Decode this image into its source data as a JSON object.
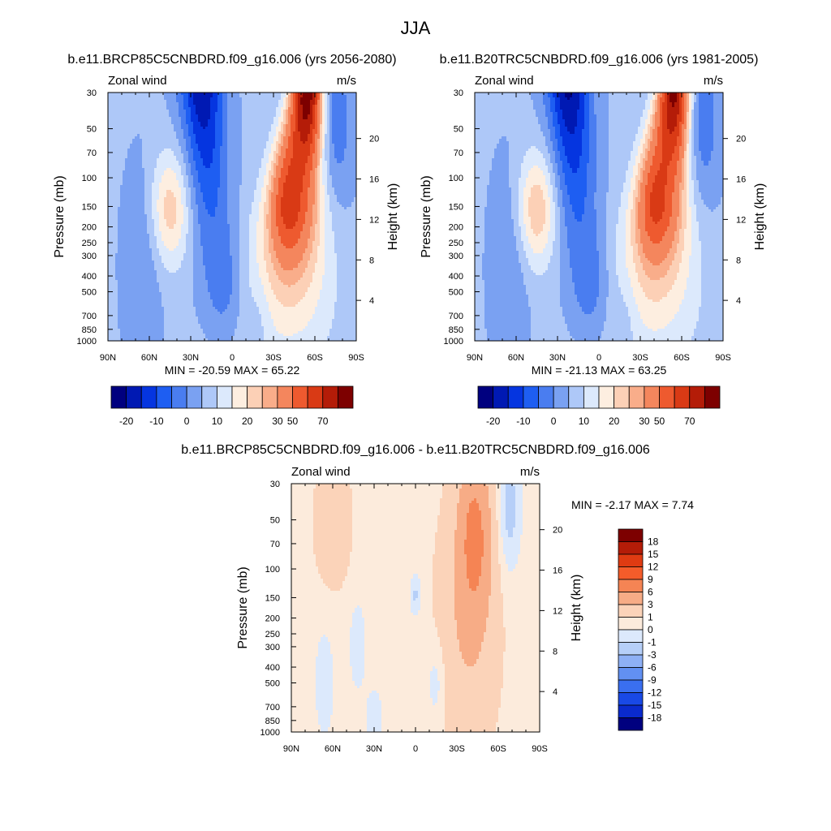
{
  "figure": {
    "title": "JJA"
  },
  "chart_data": [
    {
      "type": "heatmap",
      "title": "b.e11.BRCP85C5CNBDRD.f09_g16.006 (yrs 2056-2080)",
      "left_label": "Zonal wind",
      "right_label": "m/s",
      "ylabel": "Pressure (mb)",
      "ylabel_right": "Height (km)",
      "x_ticks": [
        "90N",
        "60N",
        "30N",
        "0",
        "30S",
        "60S",
        "90S"
      ],
      "y_ticks": [
        "30",
        "50",
        "70",
        "100",
        "150",
        "200",
        "250",
        "300",
        "400",
        "500",
        "700",
        "850",
        "1000"
      ],
      "height_ticks": [
        "4",
        "8",
        "12",
        "16",
        "20"
      ],
      "stats": "MIN = -20.59  MAX = 65.22",
      "min": -20.59,
      "max": 65.22,
      "colorbar_labels": [
        "-20",
        "-10",
        "0",
        "10",
        "20",
        "30",
        "50",
        "70"
      ],
      "features": [
        {
          "kind": "easterly_jet",
          "lat": 20,
          "p": 30,
          "peak": -20
        },
        {
          "kind": "westerly_jet",
          "lat": -40,
          "p": 170,
          "peak": 45
        },
        {
          "kind": "westerly_jet",
          "lat": -55,
          "p": 30,
          "peak": 65
        },
        {
          "kind": "subtropical_jet",
          "lat": 45,
          "p": 200,
          "peak": 18
        }
      ]
    },
    {
      "type": "heatmap",
      "title": "b.e11.B20TRC5CNBDRD.f09_g16.006 (yrs 1981-2005)",
      "left_label": "Zonal wind",
      "right_label": "m/s",
      "ylabel": "Pressure (mb)",
      "ylabel_right": "Height (km)",
      "x_ticks": [
        "90N",
        "60N",
        "30N",
        "0",
        "30S",
        "60S",
        "90S"
      ],
      "y_ticks": [
        "30",
        "50",
        "70",
        "100",
        "150",
        "200",
        "250",
        "300",
        "400",
        "500",
        "700",
        "850",
        "1000"
      ],
      "height_ticks": [
        "4",
        "8",
        "12",
        "16",
        "20"
      ],
      "stats": "MIN = -21.13  MAX = 63.25",
      "min": -21.13,
      "max": 63.25,
      "colorbar_labels": [
        "-20",
        "-10",
        "0",
        "10",
        "20",
        "30",
        "50",
        "70"
      ],
      "features": [
        {
          "kind": "easterly_jet",
          "lat": 20,
          "p": 30,
          "peak": -21
        },
        {
          "kind": "westerly_jet",
          "lat": -38,
          "p": 180,
          "peak": 42
        },
        {
          "kind": "westerly_jet",
          "lat": -55,
          "p": 30,
          "peak": 63
        },
        {
          "kind": "subtropical_jet",
          "lat": 45,
          "p": 200,
          "peak": 18
        }
      ]
    },
    {
      "type": "heatmap",
      "title": "b.e11.BRCP85C5CNBDRD.f09_g16.006 - b.e11.B20TRC5CNBDRD.f09_g16.006",
      "left_label": "Zonal wind",
      "right_label": "m/s",
      "ylabel": "Pressure (mb)",
      "ylabel_right": "Height (km)",
      "x_ticks": [
        "90N",
        "60N",
        "30N",
        "0",
        "30S",
        "60S",
        "90S"
      ],
      "y_ticks": [
        "30",
        "50",
        "70",
        "100",
        "150",
        "200",
        "250",
        "300",
        "400",
        "500",
        "700",
        "850",
        "1000"
      ],
      "height_ticks": [
        "4",
        "8",
        "12",
        "16",
        "20"
      ],
      "stats": "MIN =  -2.17  MAX =   7.74",
      "min": -2.17,
      "max": 7.74,
      "colorbar_labels": [
        "18",
        "15",
        "12",
        "9",
        "6",
        "3",
        "1",
        "0",
        "-1",
        "-3",
        "-6",
        "-9",
        "-12",
        "-15",
        "-18"
      ]
    }
  ],
  "colors": {
    "panel_scale": [
      "#00007f",
      "#0019b3",
      "#0535e0",
      "#1e5ef2",
      "#4a7df0",
      "#7aa1f2",
      "#aec8f8",
      "#dce9fc",
      "#fdeee0",
      "#fcd0b6",
      "#f9ad8a",
      "#f4865d",
      "#ee5a2f",
      "#d93a15",
      "#b41c08",
      "#7d0000"
    ],
    "diff_scale": [
      "#7d0000",
      "#b41c08",
      "#df3b12",
      "#f45c2a",
      "#f58454",
      "#f7ac86",
      "#fbd3b9",
      "#fcebdc",
      "#dce9fc",
      "#b6cff8",
      "#8eb0f5",
      "#6290f2",
      "#3a6ff0",
      "#1949e6",
      "#0a2acd",
      "#00007f"
    ]
  }
}
